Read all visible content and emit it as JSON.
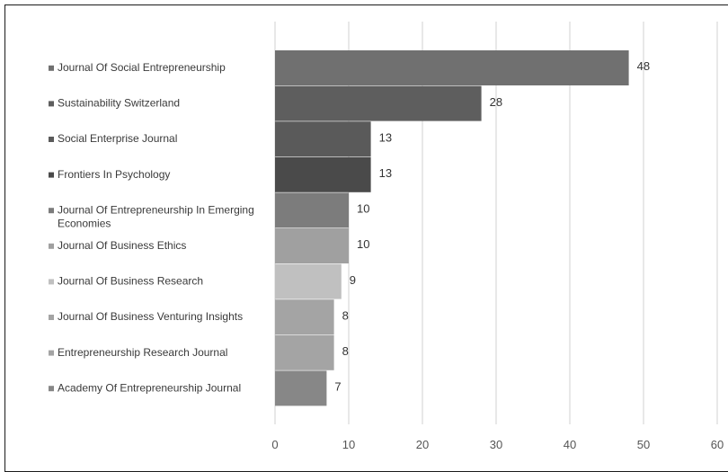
{
  "chart_data": {
    "type": "bar",
    "orientation": "horizontal",
    "categories": [
      "Journal Of Social Entrepreneurship",
      "Sustainability Switzerland",
      "Social Enterprise Journal",
      "Frontiers In Psychology",
      "Journal Of Entrepreneurship In Emerging Economies",
      "Journal Of Business Ethics",
      "Journal Of Business Research",
      "Journal Of Business Venturing Insights",
      "Entrepreneurship Research Journal",
      "Academy Of Entrepreneurship Journal"
    ],
    "category_lines": [
      [
        "Journal Of Social Entrepreneurship"
      ],
      [
        "Sustainability Switzerland"
      ],
      [
        "Social Enterprise Journal"
      ],
      [
        "Frontiers In Psychology"
      ],
      [
        "Journal Of Entrepreneurship In Emerging",
        "Economies"
      ],
      [
        "Journal Of Business Ethics"
      ],
      [
        "Journal Of Business Research"
      ],
      [
        "Journal Of Business Venturing Insights"
      ],
      [
        "Entrepreneurship Research Journal"
      ],
      [
        "Academy Of Entrepreneurship Journal"
      ]
    ],
    "values": [
      48,
      28,
      13,
      13,
      10,
      10,
      9,
      8,
      8,
      7
    ],
    "colors": [
      "#707070",
      "#5e5e5e",
      "#5a5a5a",
      "#4a4a4a",
      "#7c7c7c",
      "#a0a0a0",
      "#c0c0c0",
      "#a4a4a4",
      "#a4a4a4",
      "#878787"
    ],
    "xlim": [
      0,
      60
    ],
    "xticks": [
      0,
      10,
      20,
      30,
      40,
      50,
      60
    ],
    "grid": true,
    "legend_markers": true,
    "title": "",
    "xlabel": "",
    "ylabel": ""
  }
}
